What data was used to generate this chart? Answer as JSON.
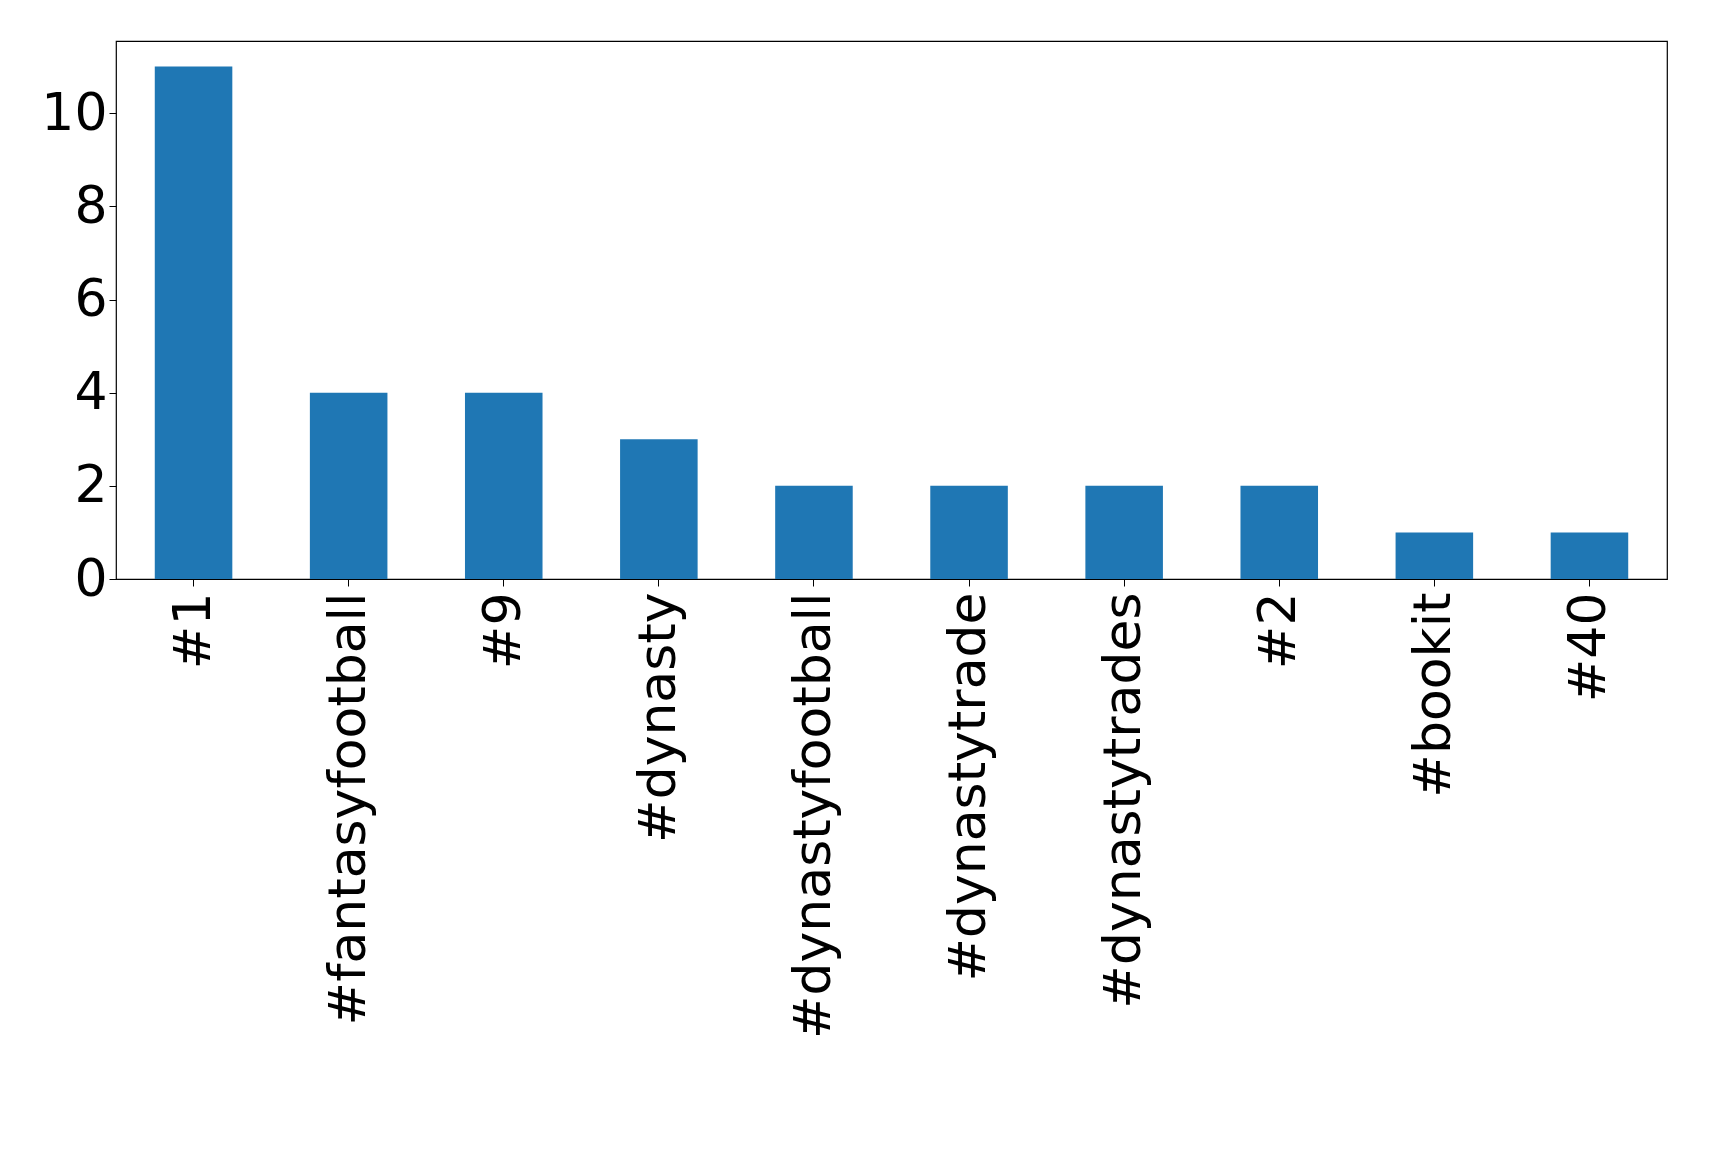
{
  "chart_data": {
    "type": "bar",
    "categories": [
      "#1",
      "#fantasyfootball",
      "#9",
      "#dynasty",
      "#dynastyfootball",
      "#dynastytrade",
      "#dynastytrades",
      "#2",
      "#bookit",
      "#40"
    ],
    "values": [
      11,
      4,
      4,
      3,
      2,
      2,
      2,
      2,
      1,
      1
    ],
    "color": "#1f77b4",
    "ylim": [
      0,
      11.55
    ],
    "yticks": [
      0,
      2,
      4,
      6,
      8,
      10
    ],
    "grid": false
  }
}
